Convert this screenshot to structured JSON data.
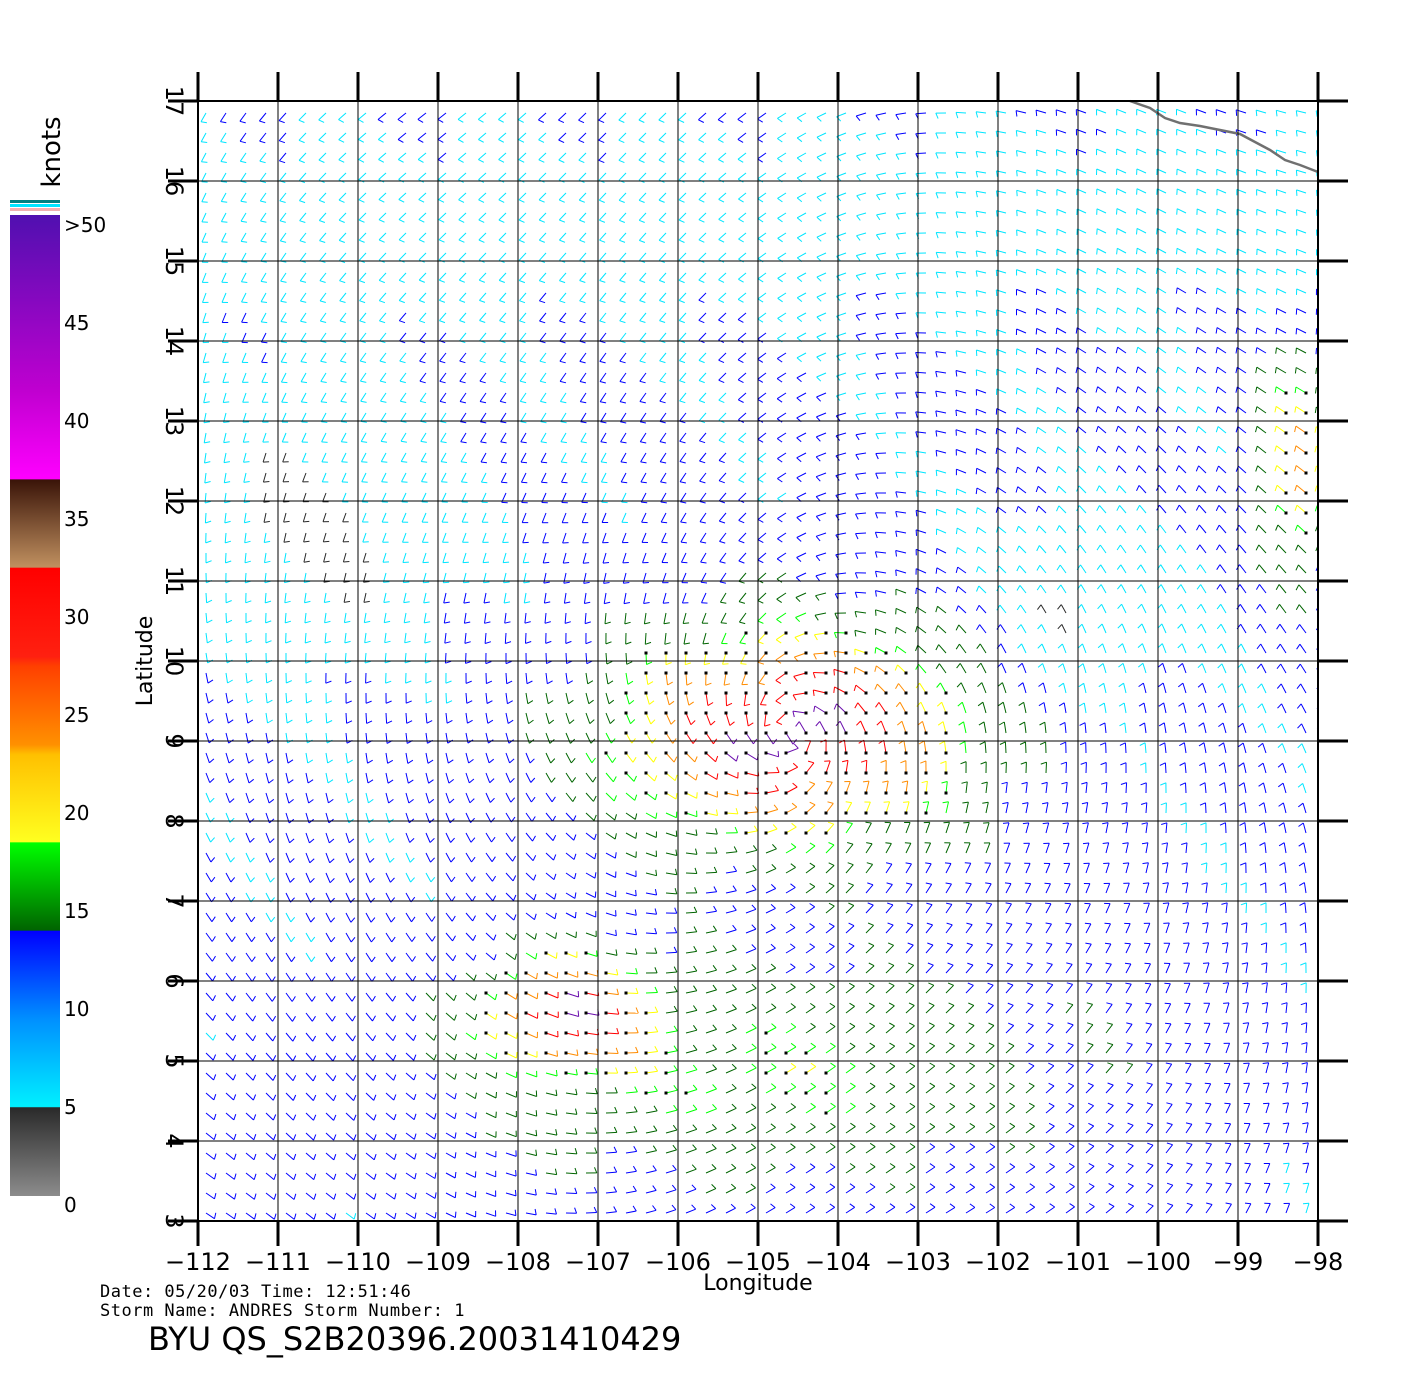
{
  "map": {
    "x_axis_label": "Longitude",
    "y_axis_label": "Latitude",
    "lon_range": [
      -112,
      -97.6
    ],
    "lat_range": [
      3,
      17
    ],
    "lon_ticks": [
      "−112",
      "−111",
      "−110",
      "−109",
      "−108",
      "−107",
      "−106",
      "−105",
      "−104",
      "−103",
      "−102",
      "−101",
      "−100",
      "−99",
      "−98"
    ],
    "lat_ticks": [
      "3",
      "4",
      "5",
      "6",
      "7",
      "8",
      "9",
      "10",
      "11",
      "12",
      "13",
      "14",
      "15",
      "16",
      "17"
    ],
    "grid": true,
    "wind_barbs": true,
    "coastline": "top-right"
  },
  "legend": {
    "title": "knots",
    "labels": [
      ">50",
      "45",
      "40",
      "35",
      "30",
      "25",
      "20",
      "15",
      "10",
      "5",
      "0"
    ],
    "colors": {
      "gray": "#808080",
      "black": "#2a2a2a",
      "cyan": "#00e5ff",
      "blue": "#0000ff",
      "darkgreen": "#006400",
      "green": "#00ff00",
      "yellow": "#ffff00",
      "orange": "#ff8c00",
      "red": "#ff0000",
      "brown": "#5a2a10",
      "tan": "#c09060",
      "magenta": "#ff00ff",
      "purple": "#6a0dad"
    }
  },
  "footer": {
    "date_line": "Date: 05/20/03   Time: 12:51:46",
    "storm_line": "Storm Name: ANDRES   Storm Number: 1",
    "title": "BYU QS_S2B20396.20031410429"
  }
}
